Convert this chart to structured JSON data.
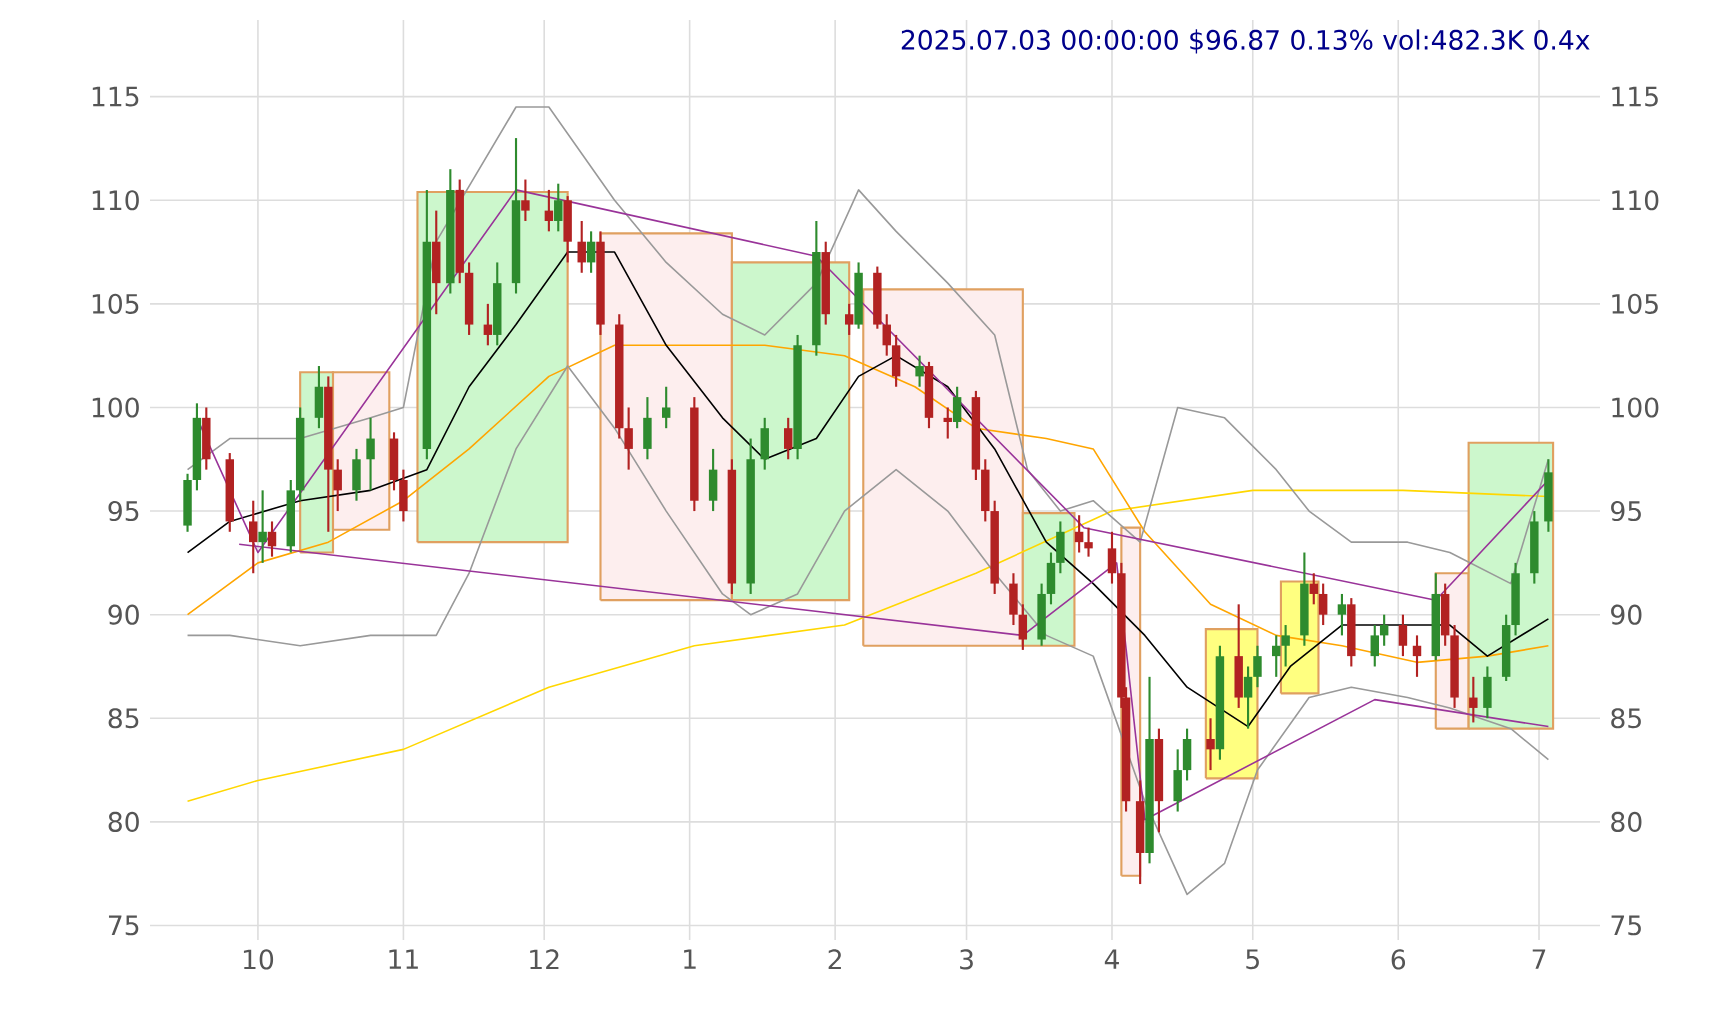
{
  "chart_data": {
    "type": "candlestick",
    "title": "2025.07.03 00:00:00 $96.87 0.13% vol:482.3K 0.4x",
    "x": [
      "2024-09-16",
      "2024-09-18",
      "2024-09-20",
      "2024-09-25",
      "2024-09-30",
      "2024-10-02",
      "2024-10-04",
      "2024-10-08",
      "2024-10-10",
      "2024-10-14",
      "2024-10-16",
      "2024-10-18",
      "2024-10-22",
      "2024-10-25",
      "2024-10-30",
      "2024-11-01",
      "2024-11-06",
      "2024-11-08",
      "2024-11-11",
      "2024-11-13",
      "2024-11-15",
      "2024-11-19",
      "2024-11-21",
      "2024-11-25",
      "2024-11-27",
      "2024-12-02",
      "2024-12-04",
      "2024-12-06",
      "2024-12-09",
      "2024-12-11",
      "2024-12-13",
      "2024-12-17",
      "2024-12-19",
      "2024-12-23",
      "2024-12-27",
      "2025-01-02",
      "2025-01-06",
      "2025-01-10",
      "2025-01-14",
      "2025-01-17",
      "2025-01-22",
      "2025-01-24",
      "2025-01-28",
      "2025-01-30",
      "2025-02-04",
      "2025-02-06",
      "2025-02-10",
      "2025-02-12",
      "2025-02-14",
      "2025-02-19",
      "2025-02-21",
      "2025-02-25",
      "2025-02-27",
      "2025-03-03",
      "2025-03-05",
      "2025-03-07",
      "2025-03-11",
      "2025-03-13",
      "2025-03-17",
      "2025-03-19",
      "2025-03-21",
      "2025-03-25",
      "2025-03-27",
      "2025-04-01",
      "2025-04-03",
      "2025-04-04",
      "2025-04-07",
      "2025-04-09",
      "2025-04-11",
      "2025-04-15",
      "2025-04-17",
      "2025-04-22",
      "2025-04-24",
      "2025-04-28",
      "2025-04-30",
      "2025-05-02",
      "2025-05-06",
      "2025-05-08",
      "2025-05-12",
      "2025-05-14",
      "2025-05-16",
      "2025-05-20",
      "2025-05-22",
      "2025-05-27",
      "2025-05-29",
      "2025-06-02",
      "2025-06-05",
      "2025-06-09",
      "2025-06-11",
      "2025-06-13",
      "2025-06-17",
      "2025-06-20",
      "2025-06-24",
      "2025-06-26",
      "2025-06-30",
      "2025-07-03"
    ],
    "ohlc": [
      [
        94.3,
        96.8,
        94.0,
        96.5
      ],
      [
        96.5,
        100.2,
        96.0,
        99.5
      ],
      [
        99.5,
        100.0,
        97.0,
        97.5
      ],
      [
        97.5,
        97.8,
        94.0,
        94.5
      ],
      [
        94.5,
        95.5,
        92.0,
        93.5
      ],
      [
        93.5,
        96.0,
        92.5,
        94.0
      ],
      [
        94.0,
        94.5,
        92.8,
        93.3
      ],
      [
        93.3,
        96.5,
        93.0,
        96.0
      ],
      [
        96.0,
        100.0,
        95.5,
        99.5
      ],
      [
        99.5,
        102.0,
        99.0,
        101.0
      ],
      [
        101.0,
        101.5,
        94.0,
        97.0
      ],
      [
        97.0,
        97.5,
        95.0,
        96.0
      ],
      [
        96.0,
        98.0,
        95.5,
        97.5
      ],
      [
        97.5,
        99.5,
        96.0,
        98.5
      ],
      [
        98.5,
        98.8,
        96.0,
        96.5
      ],
      [
        96.5,
        97.0,
        94.5,
        95.0
      ],
      [
        98.0,
        110.5,
        97.5,
        108.0
      ],
      [
        108.0,
        109.5,
        104.5,
        106.0
      ],
      [
        106.0,
        111.5,
        105.5,
        110.5
      ],
      [
        110.5,
        111.0,
        106.0,
        106.5
      ],
      [
        106.5,
        107.0,
        103.5,
        104.0
      ],
      [
        104.0,
        105.0,
        103.0,
        103.5
      ],
      [
        103.5,
        107.0,
        103.0,
        106.0
      ],
      [
        106.0,
        113.0,
        105.5,
        110.0
      ],
      [
        110.0,
        111.0,
        109.0,
        109.5
      ],
      [
        109.5,
        110.5,
        108.5,
        109.0
      ],
      [
        109.0,
        110.8,
        108.5,
        110.0
      ],
      [
        110.0,
        110.2,
        107.0,
        108.0
      ],
      [
        108.0,
        109.0,
        106.5,
        107.0
      ],
      [
        107.0,
        108.5,
        106.5,
        108.0
      ],
      [
        108.0,
        108.5,
        103.5,
        104.0
      ],
      [
        104.0,
        104.5,
        98.5,
        99.0
      ],
      [
        99.0,
        100.0,
        97.0,
        98.0
      ],
      [
        98.0,
        100.5,
        97.5,
        99.5
      ],
      [
        99.5,
        101.0,
        99.0,
        100.0
      ],
      [
        100.0,
        100.5,
        95.0,
        95.5
      ],
      [
        95.5,
        98.0,
        95.0,
        97.0
      ],
      [
        97.0,
        97.5,
        91.0,
        91.5
      ],
      [
        91.5,
        98.5,
        91.0,
        97.5
      ],
      [
        97.5,
        99.5,
        97.0,
        99.0
      ],
      [
        99.0,
        99.5,
        97.5,
        98.0
      ],
      [
        98.0,
        103.5,
        97.5,
        103.0
      ],
      [
        103.0,
        109.0,
        102.5,
        107.5
      ],
      [
        107.5,
        108.0,
        104.0,
        104.5
      ],
      [
        104.5,
        105.0,
        103.5,
        104.0
      ],
      [
        104.0,
        107.0,
        103.8,
        106.5
      ],
      [
        106.5,
        106.8,
        103.8,
        104.0
      ],
      [
        104.0,
        104.5,
        102.5,
        103.0
      ],
      [
        103.0,
        103.5,
        101.0,
        101.5
      ],
      [
        101.5,
        102.5,
        101.0,
        102.0
      ],
      [
        102.0,
        102.2,
        99.0,
        99.5
      ],
      [
        99.5,
        100.0,
        98.5,
        99.3
      ],
      [
        99.3,
        101.0,
        99.0,
        100.5
      ],
      [
        100.5,
        100.8,
        96.5,
        97.0
      ],
      [
        97.0,
        97.5,
        94.5,
        95.0
      ],
      [
        95.0,
        95.5,
        91.0,
        91.5
      ],
      [
        91.5,
        92.0,
        89.5,
        90.0
      ],
      [
        90.0,
        90.5,
        88.3,
        88.8
      ],
      [
        88.8,
        91.5,
        88.5,
        91.0
      ],
      [
        91.0,
        93.0,
        90.5,
        92.5
      ],
      [
        92.5,
        94.5,
        92.0,
        94.0
      ],
      [
        94.0,
        94.8,
        93.0,
        93.5
      ],
      [
        93.5,
        94.2,
        92.8,
        93.2
      ],
      [
        93.2,
        94.0,
        91.5,
        92.0
      ],
      [
        92.0,
        92.5,
        85.5,
        86.0
      ],
      [
        86.0,
        86.5,
        80.5,
        81.0
      ],
      [
        81.0,
        82.0,
        77.0,
        78.5
      ],
      [
        78.5,
        87.0,
        78.0,
        84.0
      ],
      [
        84.0,
        84.5,
        79.5,
        81.0
      ],
      [
        81.0,
        83.5,
        80.5,
        82.5
      ],
      [
        82.5,
        84.5,
        82.0,
        84.0
      ],
      [
        84.0,
        85.0,
        82.5,
        83.5
      ],
      [
        83.5,
        88.5,
        83.0,
        88.0
      ],
      [
        88.0,
        90.5,
        85.5,
        86.0
      ],
      [
        86.0,
        87.5,
        84.5,
        87.0
      ],
      [
        87.0,
        88.5,
        86.5,
        88.0
      ],
      [
        88.0,
        89.0,
        87.0,
        88.5
      ],
      [
        88.5,
        89.5,
        87.5,
        89.0
      ],
      [
        89.0,
        93.0,
        88.5,
        91.5
      ],
      [
        91.5,
        92.0,
        90.5,
        91.0
      ],
      [
        91.0,
        91.5,
        89.5,
        90.0
      ],
      [
        90.0,
        91.0,
        89.0,
        90.5
      ],
      [
        90.5,
        90.8,
        87.5,
        88.0
      ],
      [
        88.0,
        89.5,
        87.5,
        89.0
      ],
      [
        89.0,
        90.0,
        88.5,
        89.5
      ],
      [
        89.5,
        90.0,
        88.0,
        88.5
      ],
      [
        88.5,
        89.0,
        87.0,
        88.0
      ],
      [
        88.0,
        92.0,
        87.8,
        91.0
      ],
      [
        91.0,
        91.5,
        88.5,
        89.0
      ],
      [
        89.0,
        89.5,
        85.5,
        86.0
      ],
      [
        86.0,
        87.0,
        84.8,
        85.5
      ],
      [
        85.5,
        87.5,
        85.0,
        87.0
      ],
      [
        87.0,
        90.0,
        86.8,
        89.5
      ],
      [
        89.5,
        92.5,
        89.0,
        92.0
      ],
      [
        92.0,
        95.0,
        91.5,
        94.5
      ],
      [
        94.5,
        97.5,
        94.0,
        96.87
      ]
    ],
    "colors": [
      "#2e8b2e",
      "#2e8b2e",
      "#b22222",
      "#b22222",
      "#b22222",
      "#2e8b2e",
      "#b22222",
      "#2e8b2e",
      "#2e8b2e",
      "#2e8b2e",
      "#b22222",
      "#b22222",
      "#2e8b2e",
      "#2e8b2e",
      "#b22222",
      "#b22222",
      "#2e8b2e",
      "#b22222",
      "#2e8b2e",
      "#b22222",
      "#b22222",
      "#b22222",
      "#2e8b2e",
      "#2e8b2e",
      "#b22222",
      "#b22222",
      "#2e8b2e",
      "#b22222",
      "#b22222",
      "#2e8b2e",
      "#b22222",
      "#b22222",
      "#b22222",
      "#2e8b2e",
      "#2e8b2e",
      "#b22222",
      "#2e8b2e",
      "#b22222",
      "#2e8b2e",
      "#2e8b2e",
      "#b22222",
      "#2e8b2e",
      "#2e8b2e",
      "#b22222",
      "#b22222",
      "#2e8b2e",
      "#b22222",
      "#b22222",
      "#b22222",
      "#2e8b2e",
      "#b22222",
      "#b22222",
      "#2e8b2e",
      "#b22222",
      "#b22222",
      "#b22222",
      "#b22222",
      "#b22222",
      "#2e8b2e",
      "#2e8b2e",
      "#2e8b2e",
      "#b22222",
      "#b22222",
      "#b22222",
      "#b22222",
      "#b22222",
      "#b22222",
      "#2e8b2e",
      "#b22222",
      "#2e8b2e",
      "#2e8b2e",
      "#b22222",
      "#2e8b2e",
      "#b22222",
      "#2e8b2e",
      "#2e8b2e",
      "#2e8b2e",
      "#2e8b2e",
      "#2e8b2e",
      "#b22222",
      "#b22222",
      "#2e8b2e",
      "#b22222",
      "#2e8b2e",
      "#2e8b2e",
      "#b22222",
      "#b22222",
      "#2e8b2e",
      "#b22222",
      "#b22222",
      "#b22222",
      "#2e8b2e",
      "#2e8b2e",
      "#2e8b2e",
      "#2e8b2e",
      "#2e8b2e"
    ],
    "series": [
      {
        "type": "area",
        "color": "#ccf7cc",
        "x": [
          "2024-10-10",
          "2024-10-17",
          "2024-10-17",
          "2024-10-10",
          "2024-10-10"
        ],
        "values": [
          93.0,
          93.0,
          101.7,
          101.7,
          93.0
        ]
      },
      {
        "type": "area",
        "color": "#fdeeee",
        "x": [
          "2024-10-17",
          "2024-10-29",
          "2024-10-29",
          "2024-10-17",
          "2024-10-17"
        ],
        "values": [
          94.1,
          94.1,
          101.7,
          101.7,
          94.1
        ]
      },
      {
        "type": "area",
        "color": "#ccf7cc",
        "x": [
          "2024-11-04",
          "2024-12-06",
          "2024-12-06",
          "2024-11-04",
          "2024-11-04"
        ],
        "values": [
          93.5,
          93.5,
          110.4,
          110.4,
          93.5
        ]
      },
      {
        "type": "area",
        "color": "#fdeeee",
        "x": [
          "2024-12-13",
          "2025-01-10",
          "2025-01-10",
          "2024-12-13",
          "2024-12-13"
        ],
        "values": [
          90.7,
          90.7,
          108.4,
          108.4,
          90.7
        ]
      },
      {
        "type": "area",
        "color": "#ccf7cc",
        "x": [
          "2025-01-10",
          "2025-02-04",
          "2025-02-04",
          "2025-01-10",
          "2025-01-10"
        ],
        "values": [
          90.7,
          90.7,
          107.0,
          107.0,
          90.7
        ]
      },
      {
        "type": "area",
        "color": "#fdeeee",
        "x": [
          "2025-02-07",
          "2025-03-13",
          "2025-03-13",
          "2025-02-07",
          "2025-02-07"
        ],
        "values": [
          88.5,
          88.5,
          105.7,
          105.7,
          88.5
        ]
      },
      {
        "type": "area",
        "color": "#ccf7cc",
        "x": [
          "2025-03-13",
          "2025-03-24",
          "2025-03-24",
          "2025-03-13",
          "2025-03-13"
        ],
        "values": [
          88.5,
          88.5,
          94.9,
          94.9,
          88.5
        ]
      },
      {
        "type": "area",
        "color": "#fdeeee",
        "x": [
          "2025-04-03",
          "2025-04-07",
          "2025-04-07",
          "2025-04-03",
          "2025-04-03"
        ],
        "values": [
          77.4,
          77.4,
          94.2,
          94.2,
          77.4
        ]
      },
      {
        "type": "area",
        "color": "#ffff80",
        "x": [
          "2025-04-21",
          "2025-05-02",
          "2025-05-02",
          "2025-04-21",
          "2025-04-21"
        ],
        "values": [
          82.1,
          82.1,
          89.3,
          89.3,
          82.1
        ]
      },
      {
        "type": "area",
        "color": "#ffff80",
        "x": [
          "2025-05-07",
          "2025-05-15",
          "2025-05-15",
          "2025-05-07",
          "2025-05-07"
        ],
        "values": [
          86.2,
          86.2,
          91.6,
          91.6,
          86.2
        ]
      },
      {
        "type": "area",
        "color": "#fdeeee",
        "x": [
          "2025-06-09",
          "2025-06-16",
          "2025-06-16",
          "2025-06-09",
          "2025-06-09"
        ],
        "values": [
          84.5,
          84.5,
          92.0,
          92.0,
          84.5
        ]
      },
      {
        "type": "area",
        "color": "#ccf7cc",
        "x": [
          "2025-06-16",
          "2025-07-04",
          "2025-07-04",
          "2025-06-16",
          "2025-06-16"
        ],
        "values": [
          84.5,
          84.5,
          98.3,
          98.3,
          84.5
        ]
      },
      {
        "type": "line",
        "color": "#ffd700",
        "x": [
          "2024-09-16",
          "2024-10-01",
          "2024-11-01",
          "2024-12-02",
          "2025-01-02",
          "2025-02-03",
          "2025-03-03",
          "2025-04-01",
          "2025-05-01",
          "2025-06-02",
          "2025-07-03"
        ],
        "values": [
          81.0,
          82.0,
          83.5,
          86.5,
          88.5,
          89.5,
          92.0,
          95.0,
          96.0,
          96.0,
          95.7
        ]
      },
      {
        "type": "line",
        "color": "#ffa500",
        "x": [
          "2024-09-16",
          "2024-10-01",
          "2024-10-16",
          "2024-11-01",
          "2024-11-15",
          "2024-12-02",
          "2024-12-16",
          "2025-01-02",
          "2025-01-17",
          "2025-02-03",
          "2025-02-18",
          "2025-03-03",
          "2025-03-18",
          "2025-03-28",
          "2025-04-08",
          "2025-04-22",
          "2025-05-06",
          "2025-05-20",
          "2025-06-05",
          "2025-06-20",
          "2025-07-03"
        ],
        "values": [
          90.0,
          92.5,
          93.5,
          95.5,
          98.0,
          101.5,
          103.0,
          103.0,
          103.0,
          102.5,
          101.0,
          99.0,
          98.5,
          98.0,
          94.0,
          90.5,
          89.0,
          88.5,
          87.7,
          88.0,
          88.5
        ]
      },
      {
        "type": "line",
        "color": "#000000",
        "x": [
          "2024-09-16",
          "2024-09-25",
          "2024-10-10",
          "2024-10-25",
          "2024-11-06",
          "2024-11-15",
          "2024-11-25",
          "2024-12-06",
          "2024-12-16",
          "2024-12-27",
          "2025-01-08",
          "2025-01-17",
          "2025-01-28",
          "2025-02-06",
          "2025-02-14",
          "2025-02-25",
          "2025-03-07",
          "2025-03-18",
          "2025-03-28",
          "2025-04-08",
          "2025-04-17",
          "2025-04-30",
          "2025-05-09",
          "2025-05-20",
          "2025-06-02",
          "2025-06-12",
          "2025-06-20",
          "2025-07-03"
        ],
        "values": [
          93.0,
          94.5,
          95.5,
          96.0,
          97.0,
          101.0,
          104.0,
          107.5,
          107.5,
          103.0,
          99.5,
          97.5,
          98.5,
          101.5,
          102.5,
          101.0,
          98.0,
          93.5,
          91.5,
          89.0,
          86.5,
          84.6,
          87.5,
          89.5,
          89.5,
          89.5,
          88.0,
          89.8
        ]
      },
      {
        "type": "line",
        "color": "#999999",
        "x": [
          "2024-09-16",
          "2024-09-25",
          "2024-10-10",
          "2024-10-25",
          "2024-11-01",
          "2024-11-08",
          "2024-11-25",
          "2024-12-02",
          "2024-12-16",
          "2024-12-27",
          "2025-01-08",
          "2025-01-17",
          "2025-01-28",
          "2025-02-06",
          "2025-02-14",
          "2025-02-25",
          "2025-03-07",
          "2025-03-14",
          "2025-03-21",
          "2025-03-28",
          "2025-04-07",
          "2025-04-15",
          "2025-04-25",
          "2025-05-06",
          "2025-05-13",
          "2025-05-22",
          "2025-06-03",
          "2025-06-12",
          "2025-06-25",
          "2025-07-03"
        ],
        "values": [
          97.0,
          98.5,
          98.5,
          99.5,
          100.0,
          108.0,
          114.5,
          114.5,
          110.0,
          107.0,
          104.5,
          103.5,
          106.0,
          110.5,
          108.5,
          106.0,
          103.5,
          97.0,
          95.0,
          95.5,
          93.5,
          100.0,
          99.5,
          97.0,
          95.0,
          93.5,
          93.5,
          93.0,
          91.5,
          97.5
        ]
      },
      {
        "type": "line",
        "color": "#999999",
        "x": [
          "2024-09-16",
          "2024-09-25",
          "2024-10-10",
          "2024-10-25",
          "2024-11-01",
          "2024-11-08",
          "2024-11-15",
          "2024-11-25",
          "2024-12-06",
          "2024-12-16",
          "2024-12-27",
          "2025-01-08",
          "2025-01-14",
          "2025-01-24",
          "2025-02-03",
          "2025-02-14",
          "2025-02-25",
          "2025-03-07",
          "2025-03-18",
          "2025-03-28",
          "2025-04-08",
          "2025-04-17",
          "2025-04-25",
          "2025-05-02",
          "2025-05-13",
          "2025-05-22",
          "2025-06-03",
          "2025-06-12",
          "2025-06-25",
          "2025-07-03"
        ],
        "values": [
          89.0,
          89.0,
          88.5,
          89.0,
          89.0,
          89.0,
          92.0,
          98.0,
          102.0,
          99.0,
          95.0,
          91.0,
          90.0,
          91.0,
          95.0,
          97.0,
          95.0,
          92.0,
          89.0,
          88.0,
          81.0,
          76.5,
          78.0,
          82.5,
          86.0,
          86.5,
          86.0,
          85.5,
          84.5,
          83.0
        ]
      },
      {
        "type": "line",
        "color": "#993399",
        "x": [
          "2024-09-18",
          "2024-10-01",
          "2024-11-25"
        ],
        "values": [
          99.5,
          93.0,
          110.5
        ]
      },
      {
        "type": "line",
        "color": "#993399",
        "x": [
          "2024-11-25",
          "2025-01-28",
          "2025-03-26",
          "2025-06-09",
          "2025-07-03"
        ],
        "values": [
          110.5,
          107.3,
          94.2,
          90.7,
          96.5
        ]
      },
      {
        "type": "line",
        "color": "#993399",
        "x": [
          "2024-09-27",
          "2025-03-13"
        ],
        "values": [
          93.4,
          89.0
        ]
      },
      {
        "type": "line",
        "color": "#993399",
        "x": [
          "2025-03-13",
          "2025-04-02",
          "2025-04-08",
          "2025-05-27",
          "2025-07-03"
        ],
        "values": [
          89.0,
          92.5,
          80.1,
          85.9,
          84.6
        ]
      }
    ],
    "xlim": [
      "2024-09-08",
      "2025-07-14"
    ],
    "xticks": [
      {
        "value": "2024-10-01",
        "label": "10"
      },
      {
        "value": "2024-11-01",
        "label": "11"
      },
      {
        "value": "2024-12-01",
        "label": "12"
      },
      {
        "value": "2025-01-01",
        "label": "1"
      },
      {
        "value": "2025-02-01",
        "label": "2"
      },
      {
        "value": "2025-03-01",
        "label": "3"
      },
      {
        "value": "2025-04-01",
        "label": "4"
      },
      {
        "value": "2025-05-01",
        "label": "5"
      },
      {
        "value": "2025-06-01",
        "label": "6"
      },
      {
        "value": "2025-07-01",
        "label": "7"
      }
    ],
    "ylim": [
      74.3,
      118.7
    ],
    "yticks": [
      75,
      80,
      85,
      90,
      95,
      100,
      105,
      110,
      115
    ],
    "y2lim": [
      74.3,
      118.7
    ],
    "y2ticks": [
      75,
      80,
      85,
      90,
      95,
      100,
      105,
      110,
      115
    ],
    "grid": true
  }
}
